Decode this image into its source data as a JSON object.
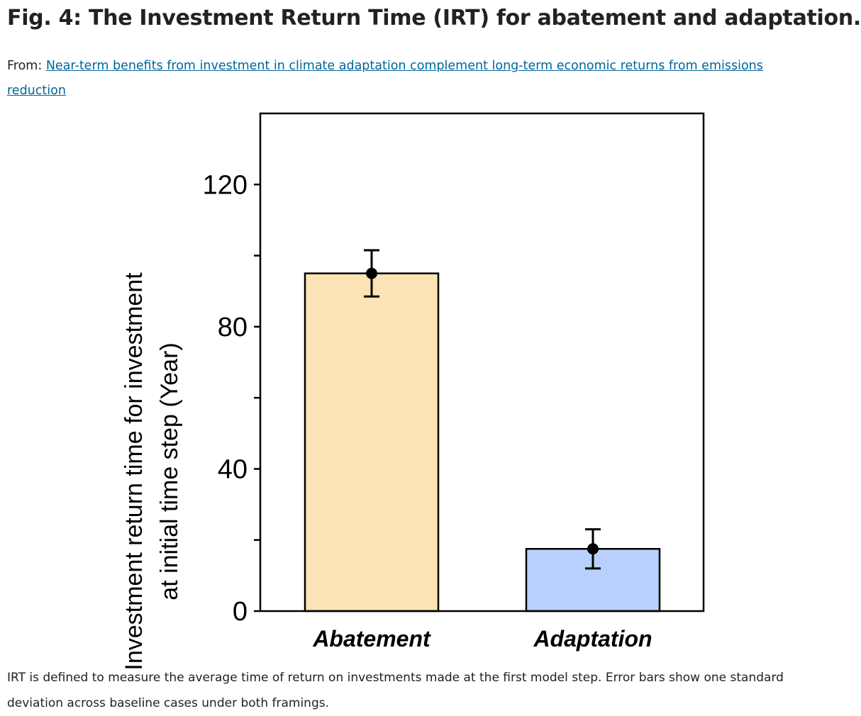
{
  "header": {
    "title": "Fig. 4: The Investment Return Time (IRT) for abatement and adaptation.",
    "from_label": "From:",
    "source_link": "Near-term benefits from investment in climate adaptation complement long-term economic returns from emissions reduction"
  },
  "caption": "IRT is defined to measure the average time of return on investments made at the first model step. Error bars show one standard deviation across baseline cases under both framings.",
  "colors": {
    "abatement": "#fce3b5",
    "adaptation": "#b7d1fc"
  },
  "chart_data": {
    "type": "bar",
    "title": "",
    "categories": [
      "Abatement",
      "Adaptation"
    ],
    "values": [
      95,
      17.5
    ],
    "error": [
      6.5,
      5.5
    ],
    "ylabel": "Investment return time for investment at initial time step (Year)",
    "ylabel_lines": [
      "Investment return time for investment",
      "at initial time step (Year)"
    ],
    "xlabel": "",
    "ylim": [
      0,
      140
    ],
    "yticks": [
      0,
      40,
      80,
      120
    ],
    "yticks_minor": [
      20,
      60,
      100
    ],
    "grid": false,
    "legend": "none"
  }
}
